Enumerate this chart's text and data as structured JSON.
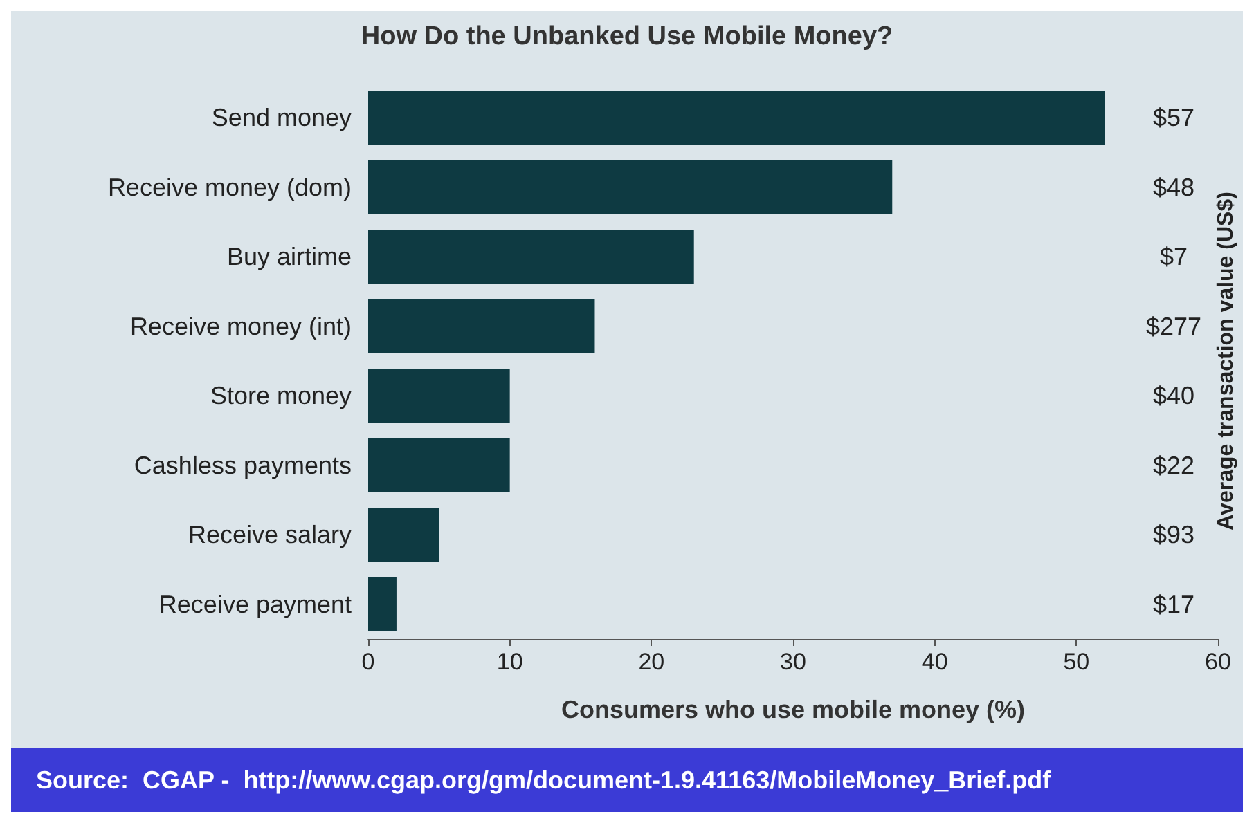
{
  "chart_data": {
    "type": "bar",
    "orientation": "horizontal",
    "title": "How Do the Unbanked Use Mobile Money?",
    "xlabel": "Consumers who use mobile money (%)",
    "y2label": "Average transaction value (US$)",
    "categories": [
      "Send money",
      "Receive money (dom)",
      "Buy airtime",
      "Receive money (int)",
      "Store money",
      "Cashless payments",
      "Receive salary",
      "Receive payment"
    ],
    "values": [
      52,
      37,
      23,
      16,
      10,
      10,
      5,
      2
    ],
    "color": "#0e3a42",
    "xlim": [
      0,
      60
    ],
    "xticks": [
      0,
      10,
      20,
      30,
      40,
      50,
      60
    ],
    "grid": false,
    "annotations": [
      "$57",
      "$48",
      "$7",
      "$277",
      "$40",
      "$22",
      "$93",
      "$17",
      "Source:  CGAP -  http://www.cgap.org/gm/document-1.9.41163/MobileMoney_Brief.pdf"
    ]
  }
}
